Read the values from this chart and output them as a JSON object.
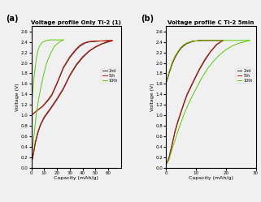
{
  "title_a": "Voltage profile Only Ti-2 (1)",
  "title_b": "Voltage profile C Ti-2 5min",
  "xlabel": "Capacity (mAh/g)",
  "ylabel": "Voltage (V)",
  "panel_a_label": "(a)",
  "panel_b_label": "(b)",
  "xlim_a": [
    0,
    70
  ],
  "xlim_b": [
    0,
    30
  ],
  "ylim": [
    0.0,
    2.7
  ],
  "yticks": [
    0.0,
    0.2,
    0.4,
    0.6,
    0.8,
    1.0,
    1.2,
    1.4,
    1.6,
    1.8,
    2.0,
    2.2,
    2.4,
    2.6
  ],
  "xticks_a": [
    0,
    10,
    20,
    30,
    40,
    50,
    60
  ],
  "xticks_b": [
    0,
    10,
    20,
    30
  ],
  "legend_labels": [
    "2nd",
    "5th",
    "10th"
  ],
  "colors": [
    "#222222",
    "#cc1100",
    "#55cc00"
  ],
  "bg_color": "#f0f0f0",
  "panel_a": {
    "2nd_charge": {
      "x": [
        0,
        1,
        2,
        3,
        4,
        5,
        6,
        8,
        10,
        13,
        16,
        20,
        25,
        30,
        35,
        38,
        40,
        42,
        45,
        50,
        55,
        60,
        63
      ],
      "y": [
        1.0,
        1.02,
        1.04,
        1.06,
        1.08,
        1.1,
        1.12,
        1.15,
        1.2,
        1.28,
        1.38,
        1.6,
        1.9,
        2.1,
        2.25,
        2.32,
        2.35,
        2.38,
        2.4,
        2.41,
        2.42,
        2.42,
        2.42
      ]
    },
    "2nd_discharge": {
      "x": [
        63,
        60,
        55,
        50,
        45,
        40,
        35,
        30,
        25,
        20,
        15,
        10,
        7,
        5,
        3,
        2,
        1,
        0.3
      ],
      "y": [
        2.42,
        2.4,
        2.36,
        2.3,
        2.22,
        2.1,
        1.95,
        1.75,
        1.5,
        1.3,
        1.12,
        0.95,
        0.8,
        0.65,
        0.45,
        0.3,
        0.18,
        0.1
      ]
    },
    "5th_charge": {
      "x": [
        0,
        1,
        2,
        3,
        4,
        5,
        6,
        8,
        10,
        13,
        16,
        20,
        25,
        30,
        35,
        38,
        40,
        42,
        45,
        50,
        55,
        60,
        63
      ],
      "y": [
        1.0,
        1.02,
        1.04,
        1.06,
        1.08,
        1.1,
        1.12,
        1.16,
        1.21,
        1.3,
        1.4,
        1.62,
        1.92,
        2.12,
        2.27,
        2.34,
        2.37,
        2.39,
        2.41,
        2.42,
        2.42,
        2.43,
        2.43
      ]
    },
    "5th_discharge": {
      "x": [
        63,
        60,
        55,
        50,
        45,
        40,
        35,
        30,
        25,
        20,
        15,
        10,
        7,
        5,
        3,
        2,
        1,
        0.3
      ],
      "y": [
        2.43,
        2.41,
        2.37,
        2.31,
        2.23,
        2.12,
        1.97,
        1.77,
        1.52,
        1.32,
        1.14,
        0.97,
        0.82,
        0.68,
        0.48,
        0.32,
        0.2,
        0.12
      ]
    },
    "10th_charge": {
      "x": [
        0,
        0.5,
        1,
        1.5,
        2,
        3,
        4,
        5,
        6,
        8,
        10,
        12,
        15,
        18,
        20,
        22,
        24,
        25
      ],
      "y": [
        1.2,
        1.3,
        1.42,
        1.55,
        1.7,
        1.9,
        2.1,
        2.22,
        2.3,
        2.38,
        2.41,
        2.43,
        2.44,
        2.44,
        2.44,
        2.44,
        2.44,
        2.44
      ]
    },
    "10th_discharge": {
      "x": [
        25,
        22,
        18,
        15,
        12,
        10,
        8,
        6,
        4,
        3,
        2,
        1,
        0.3
      ],
      "y": [
        2.44,
        2.4,
        2.32,
        2.18,
        2.0,
        1.82,
        1.6,
        1.35,
        1.05,
        0.82,
        0.6,
        0.35,
        0.15
      ]
    }
  },
  "panel_b": {
    "2nd_charge": {
      "x": [
        0,
        0.2,
        0.5,
        0.8,
        1.0,
        1.5,
        2,
        3,
        4,
        5,
        6,
        7,
        8,
        9,
        10,
        12,
        14,
        16,
        18,
        19
      ],
      "y": [
        1.62,
        1.65,
        1.7,
        1.75,
        1.8,
        1.88,
        1.97,
        2.1,
        2.2,
        2.28,
        2.33,
        2.37,
        2.39,
        2.41,
        2.42,
        2.43,
        2.43,
        2.43,
        2.43,
        2.43
      ]
    },
    "2nd_discharge": {
      "x": [
        19,
        17,
        15,
        13,
        11,
        9,
        7,
        6,
        5,
        4,
        3,
        2.5,
        2,
        1.5,
        1,
        0.5,
        0.2
      ],
      "y": [
        2.43,
        2.35,
        2.22,
        2.05,
        1.85,
        1.62,
        1.38,
        1.22,
        1.05,
        0.88,
        0.68,
        0.55,
        0.42,
        0.3,
        0.18,
        0.1,
        0.08
      ]
    },
    "5th_charge": {
      "x": [
        0,
        0.2,
        0.5,
        0.8,
        1.0,
        1.5,
        2,
        3,
        4,
        5,
        6,
        7,
        8,
        9,
        10,
        12,
        14,
        16,
        18,
        19
      ],
      "y": [
        1.62,
        1.65,
        1.7,
        1.76,
        1.81,
        1.89,
        1.98,
        2.11,
        2.21,
        2.29,
        2.34,
        2.38,
        2.4,
        2.42,
        2.42,
        2.43,
        2.43,
        2.43,
        2.43,
        2.43
      ]
    },
    "5th_discharge": {
      "x": [
        19,
        17,
        15,
        13,
        11,
        9,
        7,
        6,
        5,
        4,
        3,
        2.5,
        2,
        1.5,
        1,
        0.5,
        0.2
      ],
      "y": [
        2.43,
        2.36,
        2.23,
        2.07,
        1.87,
        1.64,
        1.4,
        1.24,
        1.07,
        0.9,
        0.7,
        0.57,
        0.44,
        0.32,
        0.2,
        0.12,
        0.09
      ]
    },
    "10th_charge": {
      "x": [
        0,
        0.2,
        0.5,
        0.8,
        1.0,
        1.5,
        2,
        3,
        4,
        5,
        6,
        7,
        8,
        9,
        10,
        12,
        14,
        16,
        18,
        20,
        22,
        24,
        26,
        28
      ],
      "y": [
        1.62,
        1.66,
        1.72,
        1.78,
        1.83,
        1.91,
        2.0,
        2.13,
        2.22,
        2.3,
        2.35,
        2.38,
        2.4,
        2.41,
        2.42,
        2.43,
        2.43,
        2.43,
        2.43,
        2.43,
        2.43,
        2.43,
        2.43,
        2.43
      ]
    },
    "10th_discharge": {
      "x": [
        28,
        26,
        24,
        22,
        20,
        18,
        16,
        14,
        12,
        10,
        8,
        6,
        5,
        4,
        3,
        2,
        1.5,
        1,
        0.5,
        0.2
      ],
      "y": [
        2.43,
        2.4,
        2.37,
        2.32,
        2.25,
        2.16,
        2.04,
        1.9,
        1.72,
        1.5,
        1.28,
        1.02,
        0.86,
        0.7,
        0.52,
        0.35,
        0.25,
        0.15,
        0.1,
        0.08
      ]
    }
  }
}
